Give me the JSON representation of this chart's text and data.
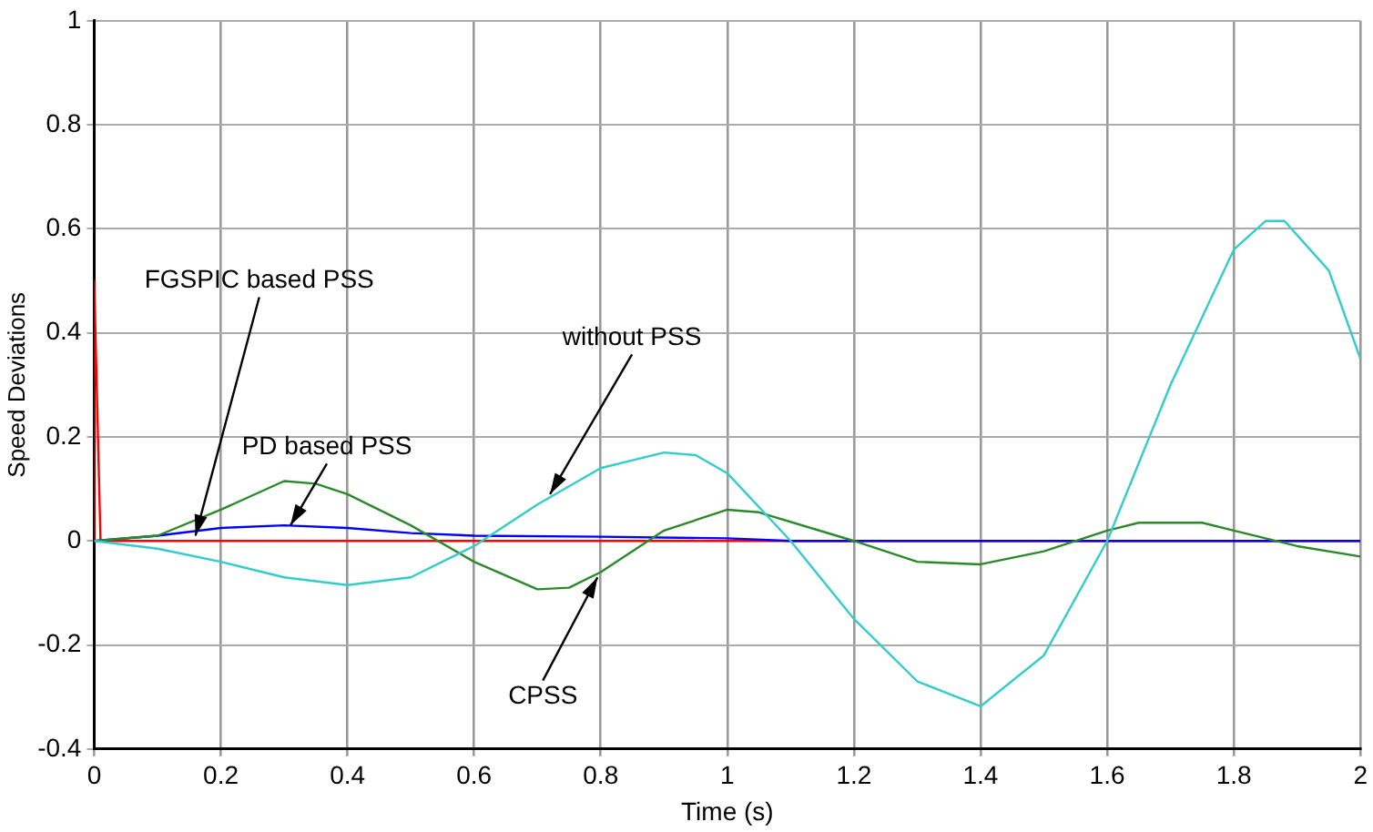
{
  "chart_data": {
    "type": "line",
    "xlabel": "Time (s)",
    "ylabel": "Speed Deviations",
    "xlim": [
      0,
      2
    ],
    "xticks": [
      0,
      0.2,
      0.4,
      0.6,
      0.8,
      1,
      1.2,
      1.4,
      1.6,
      1.8,
      2
    ],
    "ylim": [
      -0.4,
      1
    ],
    "yticks": [
      -0.4,
      -0.2,
      0,
      0.2,
      0.4,
      0.6,
      0.8,
      1
    ],
    "grid": true,
    "legend": false,
    "marker": "none",
    "line_style": "solid",
    "series": [
      {
        "color": "#33cccc",
        "x": [
          0,
          0.1,
          0.2,
          0.3,
          0.4,
          0.5,
          0.6,
          0.7,
          0.8,
          0.9,
          0.95,
          1,
          1.1,
          1.2,
          1.3,
          1.4,
          1.5,
          1.6,
          1.7,
          1.8,
          1.85,
          1.88,
          1.95,
          2
        ],
        "values": [
          0,
          -0.015,
          -0.04,
          -0.07,
          -0.085,
          -0.07,
          -0.01,
          0.07,
          0.14,
          0.17,
          0.165,
          0.13,
          0,
          -0.15,
          -0.27,
          -0.318,
          -0.22,
          0,
          0.3,
          0.56,
          0.615,
          0.615,
          0.52,
          0.35
        ]
      },
      {
        "color": "#2a8a2a",
        "x": [
          0,
          0.1,
          0.2,
          0.3,
          0.35,
          0.4,
          0.5,
          0.6,
          0.7,
          0.75,
          0.8,
          0.9,
          1,
          1.05,
          1.2,
          1.3,
          1.4,
          1.5,
          1.6,
          1.65,
          1.75,
          1.8,
          1.9,
          2
        ],
        "values": [
          0,
          0.01,
          0.06,
          0.115,
          0.11,
          0.09,
          0.03,
          -0.04,
          -0.093,
          -0.09,
          -0.06,
          0.02,
          0.06,
          0.055,
          0,
          -0.04,
          -0.045,
          -0.02,
          0.02,
          0.035,
          0.035,
          0.02,
          -0.01,
          -0.03
        ]
      },
      {
        "color": "#0000ff",
        "x": [
          0,
          0.1,
          0.2,
          0.3,
          0.4,
          0.5,
          0.6,
          0.8,
          1,
          1.1,
          2
        ],
        "values": [
          0,
          0.01,
          0.025,
          0.03,
          0.025,
          0.015,
          0.01,
          0.008,
          0.005,
          0,
          0
        ]
      },
      {
        "color": "#ff0000",
        "x": [
          0,
          0,
          0.01,
          2
        ],
        "values": [
          0,
          0.5,
          0,
          0
        ]
      }
    ],
    "annotations": [
      {
        "text": "FGSPIC based PSS",
        "x": 0.16,
        "y": 0.01
      },
      {
        "text": "PD based PSS",
        "x": 0.31,
        "y": 0.03
      },
      {
        "text": "without PSS",
        "x": 0.72,
        "y": 0.09
      },
      {
        "text": "CPSS",
        "x": 0.795,
        "y": -0.07
      }
    ]
  }
}
